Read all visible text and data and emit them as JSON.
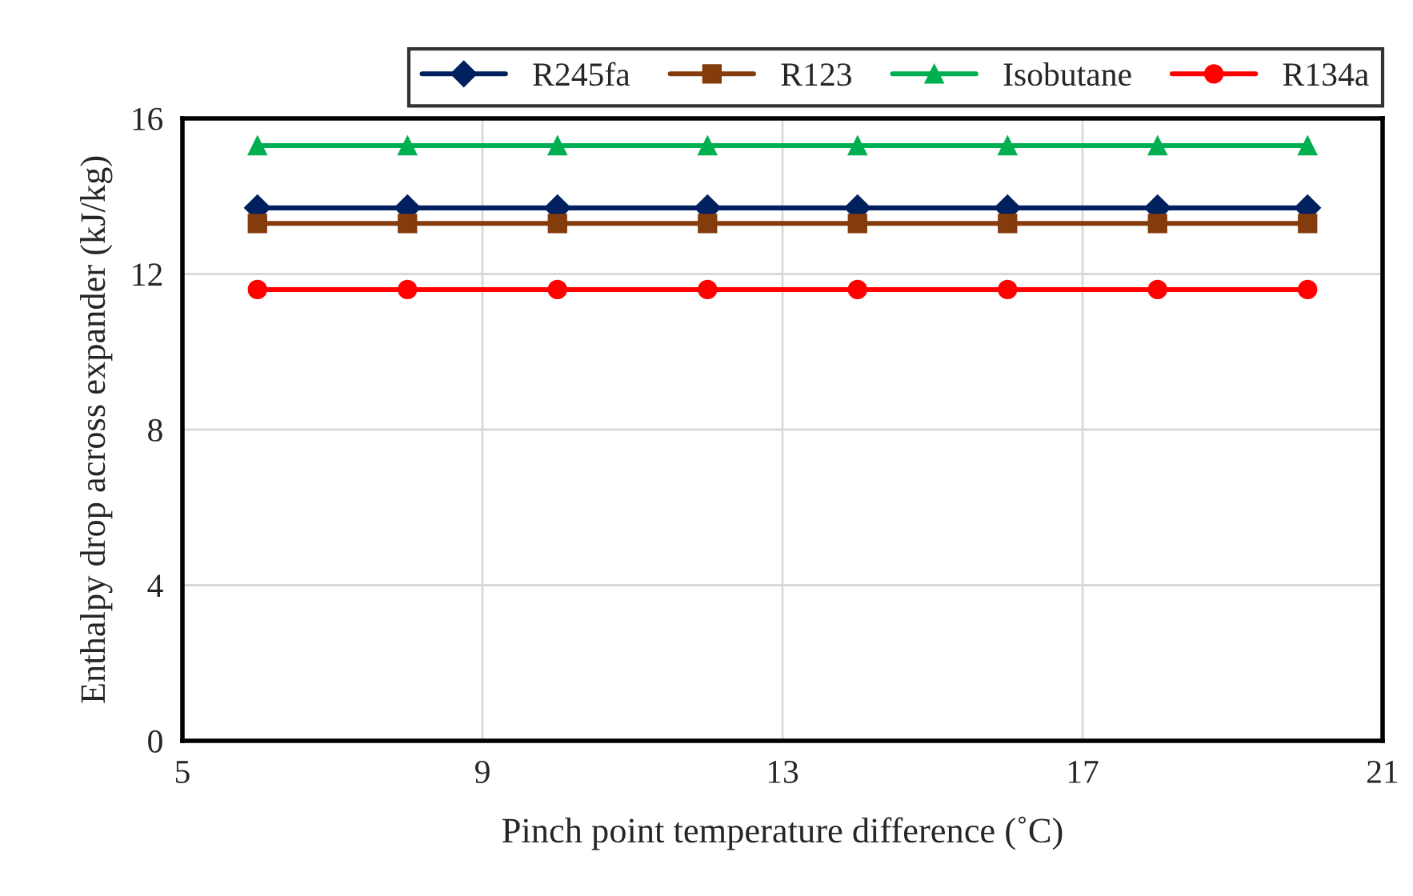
{
  "chart_data": {
    "type": "line",
    "xlabel": "Pinch point temperature difference (˚C)",
    "ylabel": "Enthalpy drop across expander (kJ/kg)",
    "x": [
      6,
      8,
      10,
      12,
      14,
      16,
      18,
      20
    ],
    "series": [
      {
        "name": "R245fa",
        "color": "#002060",
        "marker": "diamond",
        "values": [
          13.7,
          13.7,
          13.7,
          13.7,
          13.7,
          13.7,
          13.7,
          13.7
        ]
      },
      {
        "name": "R123",
        "color": "#843c0c",
        "marker": "square",
        "values": [
          13.3,
          13.3,
          13.3,
          13.3,
          13.3,
          13.3,
          13.3,
          13.3
        ]
      },
      {
        "name": "Isobutane",
        "color": "#00b050",
        "marker": "triangle",
        "values": [
          15.3,
          15.3,
          15.3,
          15.3,
          15.3,
          15.3,
          15.3,
          15.3
        ]
      },
      {
        "name": "R134a",
        "color": "#ff0000",
        "marker": "circle",
        "values": [
          11.6,
          11.6,
          11.6,
          11.6,
          11.6,
          11.6,
          11.6,
          11.6
        ]
      }
    ],
    "xlim": [
      5,
      21
    ],
    "xticks": [
      5,
      9,
      13,
      17,
      21
    ],
    "ylim": [
      0,
      16
    ],
    "yticks": [
      0,
      4,
      8,
      12,
      16
    ],
    "grid": true,
    "legend": "top right",
    "line_style": "solid"
  }
}
